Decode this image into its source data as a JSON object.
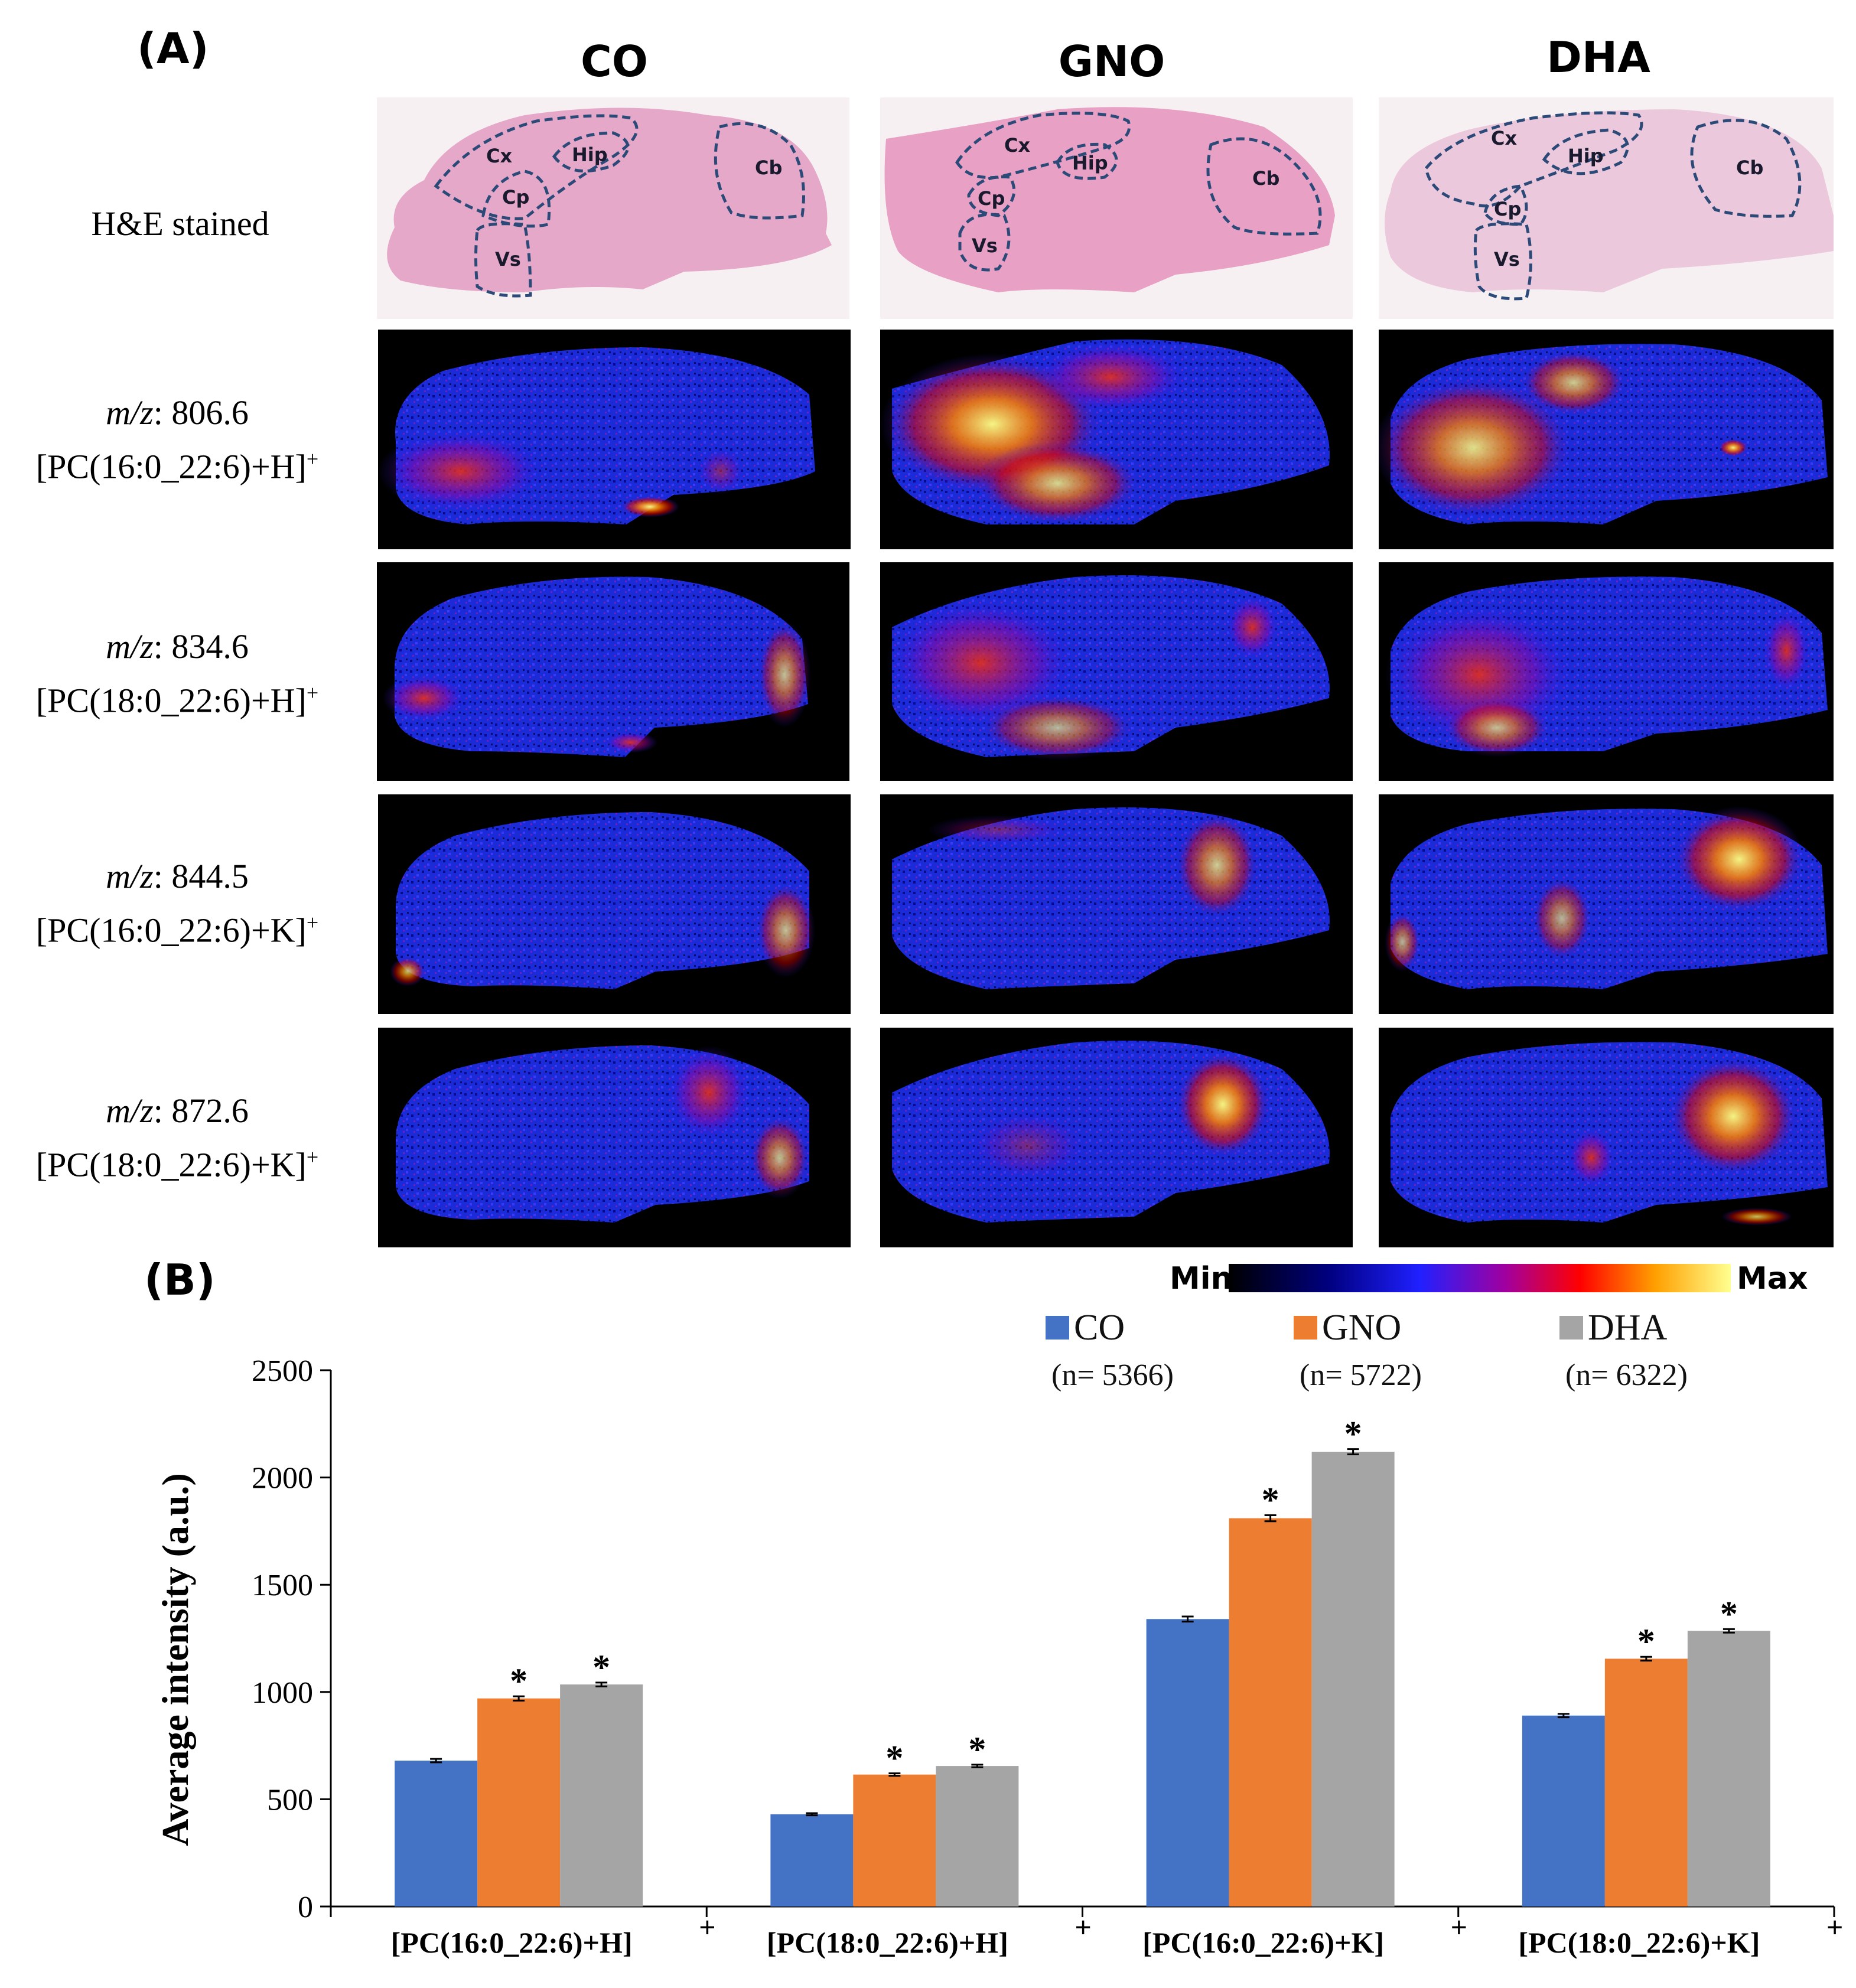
{
  "panel_a": {
    "label": "(A)",
    "columns": [
      "CO",
      "GNO",
      "DHA"
    ],
    "rows": [
      {
        "label": "H&E stained",
        "type": "he"
      },
      {
        "mz_prefix": "m/z",
        "mz_value": ": 806.6",
        "ion": "[PC(16:0_22:6)+H]",
        "charge": "+",
        "type": "msi"
      },
      {
        "mz_prefix": "m/z",
        "mz_value": ": 834.6",
        "ion": "[PC(18:0_22:6)+H]",
        "charge": "+",
        "type": "msi"
      },
      {
        "mz_prefix": "m/z",
        "mz_value": ": 844.5",
        "ion": "[PC(16:0_22:6)+K]",
        "charge": "+",
        "type": "msi"
      },
      {
        "mz_prefix": "m/z",
        "mz_value": ": 872.6",
        "ion": "[PC(18:0_22:6)+K]",
        "charge": "+",
        "type": "msi"
      }
    ],
    "regions": [
      "Cx",
      "Hip",
      "Cp",
      "Vs",
      "Cb"
    ],
    "colorbar": {
      "min_label": "Min",
      "max_label": "Max"
    }
  },
  "panel_b": {
    "label": "(B)"
  },
  "chart_data": {
    "type": "bar",
    "title": "",
    "xlabel": "",
    "ylabel": "Average intensity (a.u.)",
    "ylim": [
      0,
      2500
    ],
    "yticks": [
      0,
      500,
      1000,
      1500,
      2000,
      2500
    ],
    "categories": [
      "[PC(16:0_22:6)+H]",
      "[PC(18:0_22:6)+H]",
      "[PC(16:0_22:6)+K]",
      "[PC(18:0_22:6)+K]"
    ],
    "category_superscript": "+",
    "series": [
      {
        "name": "CO",
        "n_label": "(n= 5366)",
        "color": "#4472c4",
        "values": [
          680,
          430,
          1340,
          890
        ],
        "errors": [
          8,
          5,
          12,
          8
        ],
        "significant": [
          false,
          false,
          false,
          false
        ]
      },
      {
        "name": "GNO",
        "n_label": "(n= 5722)",
        "color": "#ed7d31",
        "values": [
          970,
          615,
          1810,
          1155
        ],
        "errors": [
          10,
          6,
          14,
          9
        ],
        "significant": [
          true,
          true,
          true,
          true
        ]
      },
      {
        "name": "DHA",
        "n_label": "(n= 6322)",
        "color": "#a5a5a5",
        "values": [
          1035,
          655,
          2120,
          1285
        ],
        "errors": [
          9,
          6,
          12,
          8
        ],
        "significant": [
          true,
          true,
          true,
          true
        ]
      }
    ],
    "significance_marker": "*"
  }
}
